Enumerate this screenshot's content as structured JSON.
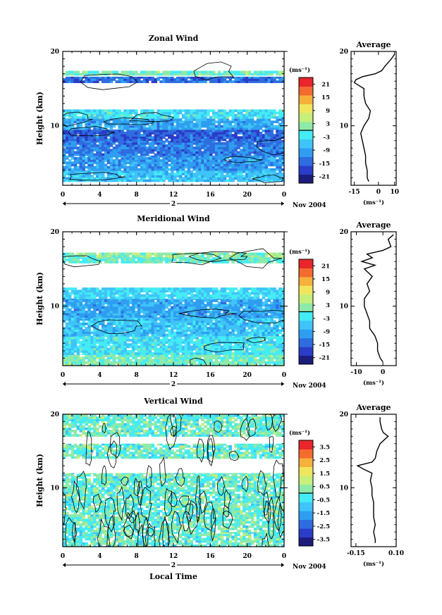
{
  "x_axis_label": "Local Time",
  "date_label": "Nov 2004",
  "day_label": "2",
  "chart_data": [
    {
      "type": "heatmap",
      "title": "Zonal Wind",
      "ylabel": "Height (km)",
      "xlabel": "",
      "xlim": [
        0,
        24
      ],
      "ylim": [
        2,
        20
      ],
      "x_ticks": [
        "0",
        "4",
        "8",
        "12",
        "16",
        "20",
        "0"
      ],
      "y_ticks": [
        "10",
        "20"
      ],
      "colorbar": {
        "unit_label": "(ms⁻¹)",
        "tick_labels": [
          "21",
          "15",
          "9",
          "3",
          "-3",
          "-9",
          "-15",
          "-21"
        ],
        "colors": [
          "#1c1c7a",
          "#2a3cc8",
          "#2f6ce0",
          "#2f9ef0",
          "#3fc4f8",
          "#44ecf4",
          "#8eeaa8",
          "#c6ef7c",
          "#f0e65e",
          "#f6b03c",
          "#f36b2f",
          "#e8262c"
        ],
        "min": -24,
        "max": 24
      },
      "bands": [
        {
          "y": [
            2.5,
            4
          ],
          "mean": -6
        },
        {
          "y": [
            4,
            6
          ],
          "mean": -10
        },
        {
          "y": [
            6,
            8
          ],
          "mean": -13
        },
        {
          "y": [
            8,
            9.5
          ],
          "mean": -15
        },
        {
          "y": [
            9.5,
            11
          ],
          "mean": -9
        },
        {
          "y": [
            11,
            12.2
          ],
          "mean": -3
        },
        {
          "y": [
            15.8,
            16.6
          ],
          "mean": -14
        },
        {
          "y": [
            16.8,
            17.4
          ],
          "mean": 1
        }
      ],
      "profile": {
        "title": "Average",
        "xlabel": "(ms⁻¹)",
        "xlim": [
          -17,
          11
        ],
        "x_ticks": [
          "-15",
          "0",
          "10"
        ],
        "y_ticks": [
          "10",
          "20"
        ],
        "heights": [
          2.5,
          3,
          4,
          5,
          6,
          7,
          8,
          9,
          10,
          11,
          12,
          13,
          14,
          15,
          15.8,
          16.2,
          16.6,
          17,
          17.4,
          18,
          18.5,
          19,
          19.6
        ],
        "values": [
          -6,
          -7,
          -7,
          -8,
          -8,
          -9,
          -10,
          -11,
          -9,
          -6,
          -5,
          -8,
          -9,
          -9,
          -15,
          -14,
          -10,
          -2,
          2,
          4,
          6,
          8,
          10
        ]
      }
    },
    {
      "type": "heatmap",
      "title": "Meridional Wind",
      "ylabel": "Height (km)",
      "xlabel": "",
      "xlim": [
        0,
        24
      ],
      "ylim": [
        2,
        20
      ],
      "x_ticks": [
        "0",
        "4",
        "8",
        "12",
        "16",
        "20",
        "0"
      ],
      "y_ticks": [
        "10",
        "20"
      ],
      "colorbar": {
        "unit_label": "(ms⁻¹)",
        "tick_labels": [
          "21",
          "15",
          "9",
          "3",
          "-3",
          "-9",
          "-15",
          "-21"
        ],
        "colors": [
          "#1c1c7a",
          "#2a3cc8",
          "#2f6ce0",
          "#2f9ef0",
          "#3fc4f8",
          "#44ecf4",
          "#8eeaa8",
          "#c6ef7c",
          "#f0e65e",
          "#f6b03c",
          "#f36b2f",
          "#e8262c"
        ],
        "min": -24,
        "max": 24
      },
      "bands": [
        {
          "y": [
            2,
            3.5
          ],
          "mean": 1
        },
        {
          "y": [
            3.5,
            6
          ],
          "mean": -3
        },
        {
          "y": [
            6,
            8.5
          ],
          "mean": -6
        },
        {
          "y": [
            8.5,
            11
          ],
          "mean": -9
        },
        {
          "y": [
            11,
            12.5
          ],
          "mean": -4
        },
        {
          "y": [
            15.8,
            16.6
          ],
          "mean": 0
        },
        {
          "y": [
            16.6,
            17.2
          ],
          "mean": 2
        }
      ],
      "profile": {
        "title": "Average",
        "xlabel": "(ms⁻¹)",
        "xlim": [
          -12,
          5
        ],
        "x_ticks": [
          "-10",
          "0"
        ],
        "y_ticks": [
          "10",
          "20"
        ],
        "heights": [
          2.5,
          3,
          4,
          5,
          6,
          7,
          8,
          9,
          10,
          11,
          12,
          13,
          14,
          15,
          15.5,
          16,
          16.5,
          17,
          17.5,
          18,
          19,
          19.6
        ],
        "values": [
          0,
          -1,
          -2,
          -2,
          -3,
          -5,
          -5,
          -6,
          -7,
          -7,
          -5,
          -6,
          -4,
          -7,
          -3,
          -8,
          -4,
          -6,
          0,
          3,
          2,
          4
        ]
      }
    },
    {
      "type": "heatmap",
      "title": "Vertical Wind",
      "ylabel": "Height (km)",
      "xlabel": "Local Time",
      "xlim": [
        0,
        24
      ],
      "ylim": [
        2,
        20
      ],
      "x_ticks": [
        "0",
        "4",
        "8",
        "12",
        "16",
        "20",
        "0"
      ],
      "y_ticks": [
        "10",
        "20"
      ],
      "colorbar": {
        "unit_label": "(ms⁻¹)",
        "tick_labels": [
          "3.5",
          "2.5",
          "1.5",
          "0.5",
          "-0.5",
          "-1.5",
          "-2.5",
          "-3.5"
        ],
        "colors": [
          "#1c1c7a",
          "#2a3cc8",
          "#2f6ce0",
          "#2f9ef0",
          "#3fc4f8",
          "#44ecf4",
          "#8eeaa8",
          "#c6ef7c",
          "#f0e65e",
          "#f6b03c",
          "#f36b2f",
          "#e8262c"
        ],
        "min": -4,
        "max": 4
      },
      "bands": [
        {
          "y": [
            2,
            4
          ],
          "mean": 0
        },
        {
          "y": [
            4,
            8
          ],
          "mean": 0
        },
        {
          "y": [
            8,
            12
          ],
          "mean": 0
        },
        {
          "y": [
            14,
            16
          ],
          "mean": 0
        },
        {
          "y": [
            17,
            20
          ],
          "mean": 0
        }
      ],
      "profile": {
        "title": "Average",
        "xlabel": "(ms⁻¹)",
        "xlim": [
          -0.18,
          0.1
        ],
        "x_ticks": [
          "-0.15",
          "0.10"
        ],
        "y_ticks": [
          "10",
          "20"
        ],
        "heights": [
          2.5,
          3,
          4,
          5,
          6,
          7,
          8,
          9,
          10,
          11,
          12,
          12.5,
          13,
          13.5,
          14,
          15,
          16,
          17,
          17.5,
          18,
          19,
          19.6
        ],
        "values": [
          -0.03,
          -0.03,
          -0.04,
          -0.03,
          -0.04,
          -0.04,
          -0.04,
          -0.05,
          -0.05,
          -0.06,
          -0.05,
          -0.1,
          -0.14,
          -0.05,
          -0.03,
          -0.02,
          0.0,
          0.05,
          0.02,
          0.01,
          0.0,
          0.0
        ]
      }
    }
  ]
}
